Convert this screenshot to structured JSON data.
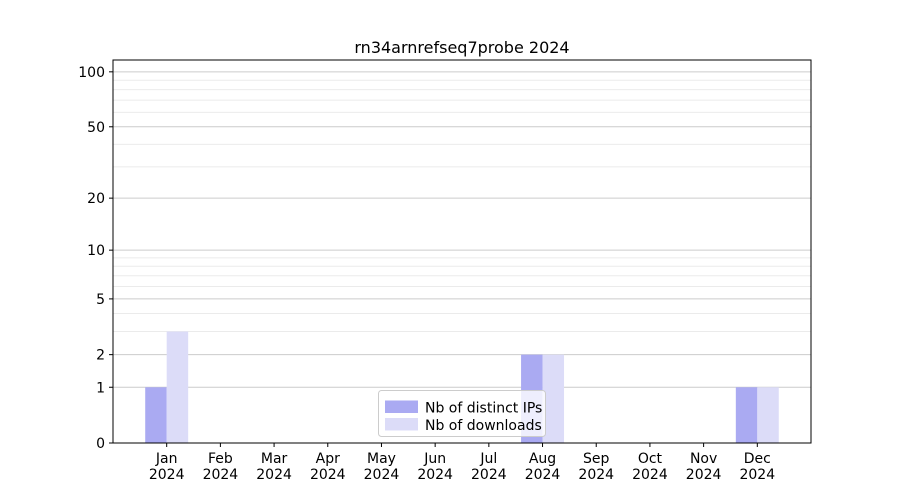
{
  "chart_data": {
    "type": "bar",
    "title": "rn34arnrefseq7probe 2024",
    "xlabel": "",
    "ylabel": "",
    "year_label": "2024",
    "categories": [
      "Jan",
      "Feb",
      "Mar",
      "Apr",
      "May",
      "Jun",
      "Jul",
      "Aug",
      "Sep",
      "Oct",
      "Nov",
      "Dec"
    ],
    "series": [
      {
        "name": "Nb of distinct IPs",
        "color": "#aaaaf2",
        "values": [
          1,
          0,
          0,
          0,
          0,
          0,
          0,
          2,
          0,
          0,
          0,
          1
        ]
      },
      {
        "name": "Nb of downloads",
        "color": "#dcdcf8",
        "values": [
          3,
          0,
          0,
          0,
          0,
          0,
          0,
          2,
          0,
          0,
          0,
          1
        ]
      }
    ],
    "y_scale": "log1p",
    "ylim": [
      0,
      116
    ],
    "yticks_major": [
      0,
      1,
      2,
      5,
      10,
      20,
      50,
      100
    ],
    "yticks_minor": [
      3,
      4,
      6,
      7,
      8,
      9,
      30,
      40,
      60,
      70,
      80,
      90
    ],
    "grid": "on",
    "legend_position": "bottom-center",
    "colors": {
      "spine": "#000000",
      "grid_major": "#cccccc",
      "grid_minor": "#ebebeb",
      "legend_border": "#cccccc",
      "legend_bg": "rgba(255,255,255,0.8)"
    }
  }
}
